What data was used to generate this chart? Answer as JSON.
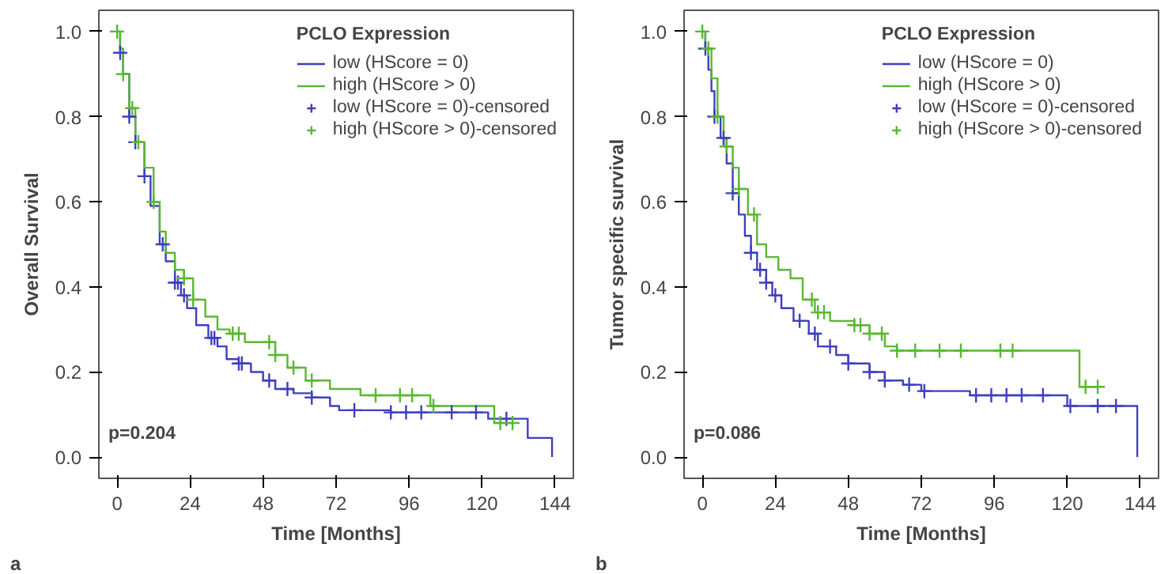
{
  "chart_data": [
    {
      "type": "step",
      "xlabel": "Time [Months]",
      "ylabel": "Overall Survival",
      "legend_title": "PCLO Expression",
      "legend": "top right",
      "grid": false,
      "xlim": [
        -6,
        150
      ],
      "ylim": [
        -0.05,
        1.05
      ],
      "xticks": [
        0,
        24,
        48,
        72,
        96,
        120,
        144
      ],
      "yticks": [
        {
          "value": 0,
          "label": "0.0"
        },
        {
          "value": 0.2,
          "label": "0.2"
        },
        {
          "value": 0.4,
          "label": "0.4"
        },
        {
          "value": 0.6,
          "label": "0.6"
        },
        {
          "value": 0.8,
          "label": "0.8"
        },
        {
          "value": 1,
          "label": "1.0"
        }
      ],
      "annotations": [
        "p=0.204",
        "a"
      ],
      "series": [
        {
          "name": "low (HScore = 0)",
          "color": "#3f3fbf",
          "x": [
            0,
            1,
            2,
            4,
            6,
            9,
            11,
            14,
            16,
            19,
            21,
            23,
            26,
            30,
            33,
            36,
            40,
            44,
            48,
            52,
            58,
            64,
            70,
            73,
            90,
            122,
            135,
            143,
            143
          ],
          "values": [
            1,
            0.95,
            0.9,
            0.8,
            0.74,
            0.66,
            0.59,
            0.5,
            0.46,
            0.41,
            0.38,
            0.35,
            0.31,
            0.28,
            0.26,
            0.23,
            0.22,
            0.2,
            0.18,
            0.16,
            0.15,
            0.14,
            0.12,
            0.11,
            0.105,
            0.09,
            0.045,
            0.045,
            0
          ]
        },
        {
          "name": "high (HScore > 0)",
          "color": "#5ab832",
          "x": [
            0,
            1,
            2,
            4,
            6,
            9,
            12,
            14,
            16,
            19,
            22,
            25,
            29,
            33,
            37,
            42,
            52,
            56,
            62,
            70,
            80,
            103,
            124,
            130
          ],
          "values": [
            1,
            0.96,
            0.9,
            0.82,
            0.74,
            0.68,
            0.6,
            0.53,
            0.48,
            0.44,
            0.42,
            0.37,
            0.33,
            0.3,
            0.29,
            0.27,
            0.24,
            0.21,
            0.18,
            0.16,
            0.145,
            0.12,
            0.08,
            0.08
          ]
        },
        {
          "name": "low (HScore = 0)-censored",
          "type": "scatter",
          "marker": "cross",
          "color": "#3f3fbf",
          "x": [
            1,
            4,
            6,
            9,
            15,
            19,
            20,
            22,
            31,
            32,
            40,
            41,
            50,
            56,
            64,
            78,
            90,
            95,
            100,
            110,
            118,
            128
          ],
          "values": [
            0.95,
            0.8,
            0.74,
            0.66,
            0.5,
            0.41,
            0.41,
            0.38,
            0.28,
            0.28,
            0.22,
            0.22,
            0.18,
            0.16,
            0.14,
            0.11,
            0.105,
            0.105,
            0.105,
            0.105,
            0.105,
            0.09
          ]
        },
        {
          "name": "high (HScore > 0)-censored",
          "type": "scatter",
          "marker": "cross",
          "color": "#5ab832",
          "x": [
            0,
            2,
            5,
            7,
            12,
            22,
            25,
            38,
            40,
            50,
            52,
            58,
            64,
            85,
            93,
            97,
            104,
            126,
            130
          ],
          "values": [
            1,
            0.9,
            0.82,
            0.74,
            0.6,
            0.42,
            0.37,
            0.29,
            0.29,
            0.27,
            0.24,
            0.21,
            0.18,
            0.145,
            0.145,
            0.145,
            0.12,
            0.08,
            0.08
          ]
        }
      ]
    },
    {
      "type": "step",
      "xlabel": "Time [Months]",
      "ylabel": "Tumor specific survival",
      "legend_title": "PCLO Expression",
      "legend": "top right",
      "grid": false,
      "xlim": [
        -6,
        150
      ],
      "ylim": [
        -0.05,
        1.05
      ],
      "xticks": [
        0,
        24,
        48,
        72,
        96,
        120,
        144
      ],
      "yticks": [
        {
          "value": 0,
          "label": "0.0"
        },
        {
          "value": 0.2,
          "label": "0.2"
        },
        {
          "value": 0.4,
          "label": "0.4"
        },
        {
          "value": 0.6,
          "label": "0.6"
        },
        {
          "value": 0.8,
          "label": "0.8"
        },
        {
          "value": 1,
          "label": "1.0"
        }
      ],
      "annotations": [
        "p=0.086",
        "b"
      ],
      "series": [
        {
          "name": "low (HScore = 0)",
          "color": "#3f3fbf",
          "x": [
            0,
            1,
            2,
            3,
            4,
            6,
            8,
            10,
            12,
            14,
            16,
            18,
            21,
            23,
            26,
            30,
            35,
            38,
            44,
            48,
            55,
            60,
            66,
            72,
            88,
            120,
            143,
            143
          ],
          "values": [
            1,
            0.96,
            0.91,
            0.86,
            0.8,
            0.75,
            0.69,
            0.62,
            0.57,
            0.52,
            0.48,
            0.44,
            0.41,
            0.38,
            0.35,
            0.32,
            0.29,
            0.26,
            0.24,
            0.22,
            0.2,
            0.18,
            0.17,
            0.155,
            0.145,
            0.12,
            0.12,
            0
          ]
        },
        {
          "name": "high (HScore > 0)",
          "color": "#5ab832",
          "x": [
            0,
            1,
            3,
            5,
            7,
            10,
            12,
            15,
            18,
            21,
            25,
            29,
            33,
            37,
            42,
            50,
            55,
            60,
            64,
            124,
            130
          ],
          "values": [
            1,
            0.96,
            0.89,
            0.8,
            0.73,
            0.68,
            0.63,
            0.57,
            0.5,
            0.47,
            0.44,
            0.42,
            0.37,
            0.34,
            0.32,
            0.31,
            0.29,
            0.26,
            0.25,
            0.165,
            0.165
          ]
        },
        {
          "name": "low (HScore = 0)-censored",
          "type": "scatter",
          "marker": "cross",
          "color": "#3f3fbf",
          "x": [
            1,
            4,
            7,
            10,
            16,
            19,
            21,
            24,
            32,
            37,
            42,
            48,
            55,
            60,
            68,
            73,
            90,
            95,
            100,
            105,
            112,
            121,
            130,
            136
          ],
          "values": [
            0.96,
            0.8,
            0.75,
            0.62,
            0.48,
            0.44,
            0.41,
            0.38,
            0.32,
            0.29,
            0.26,
            0.22,
            0.2,
            0.18,
            0.17,
            0.155,
            0.145,
            0.145,
            0.145,
            0.145,
            0.145,
            0.12,
            0.12,
            0.12
          ]
        },
        {
          "name": "high (HScore > 0)-censored",
          "type": "scatter",
          "marker": "cross",
          "color": "#5ab832",
          "x": [
            0,
            2,
            5,
            8,
            12,
            17,
            36,
            38,
            40,
            50,
            52,
            55,
            59,
            64,
            70,
            78,
            85,
            98,
            102,
            126,
            130
          ],
          "values": [
            1,
            0.96,
            0.8,
            0.73,
            0.63,
            0.57,
            0.37,
            0.34,
            0.34,
            0.31,
            0.31,
            0.29,
            0.29,
            0.25,
            0.25,
            0.25,
            0.25,
            0.25,
            0.25,
            0.165,
            0.165
          ]
        }
      ]
    }
  ]
}
